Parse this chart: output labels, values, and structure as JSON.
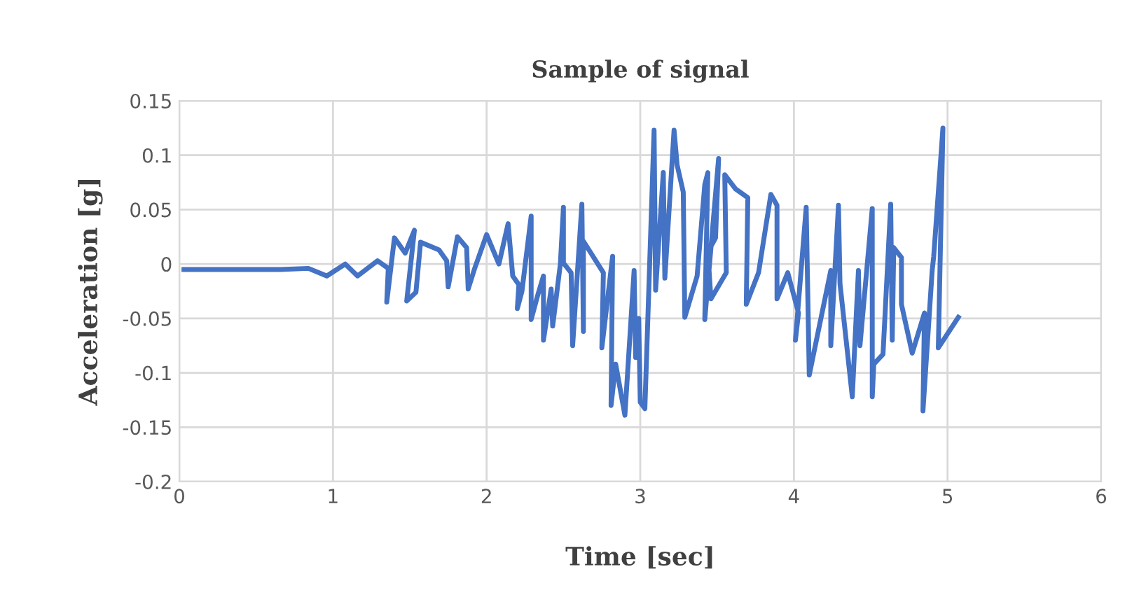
{
  "chart_data": {
    "type": "line",
    "title": "Sample of signal",
    "xlabel": "Time [sec]",
    "ylabel": "Acceleration [g]",
    "xlim": [
      0,
      6
    ],
    "xticks": [
      0,
      1,
      2,
      3,
      4,
      5,
      6
    ],
    "ylim": [
      -0.2,
      0.15
    ],
    "yticks": [
      -0.2,
      -0.15,
      -0.1,
      -0.05,
      0,
      0.05,
      0.1,
      0.15
    ],
    "grid": true,
    "series": [
      {
        "color": "#4472c4",
        "x": [
          0.03,
          0.66,
          0.84,
          0.96,
          1.08,
          1.16,
          1.29,
          1.36,
          1.35,
          1.4,
          1.47,
          1.53,
          1.48,
          1.54,
          1.57,
          1.69,
          1.74,
          1.75,
          1.81,
          1.87,
          1.88,
          1.92,
          2.0,
          2.08,
          2.14,
          2.17,
          2.21,
          2.2,
          2.23,
          2.29,
          2.29,
          2.33,
          2.37,
          2.37,
          2.42,
          2.43,
          2.48,
          2.5,
          2.5,
          2.55,
          2.56,
          2.62,
          2.63,
          2.63,
          2.76,
          2.75,
          2.82,
          2.81,
          2.84,
          2.9,
          2.96,
          2.97,
          2.99,
          3.0,
          3.03,
          3.09,
          3.1,
          3.15,
          3.16,
          3.22,
          3.24,
          3.28,
          3.29,
          3.37,
          3.42,
          3.44,
          3.42,
          3.51,
          3.49,
          3.44,
          3.46,
          3.56,
          3.55,
          3.62,
          3.7,
          3.69,
          3.77,
          3.85,
          3.89,
          3.89,
          3.96,
          4.03,
          4.01,
          4.08,
          4.1,
          4.24,
          4.24,
          4.29,
          4.3,
          4.38,
          4.42,
          4.43,
          4.51,
          4.51,
          4.52,
          4.58,
          4.63,
          4.64,
          4.65,
          4.7,
          4.7,
          4.77,
          4.85,
          4.84,
          4.9,
          4.91,
          4.97,
          4.94,
          5.07
        ],
        "values": [
          -0.005,
          -0.005,
          -0.004,
          -0.011,
          0.0,
          -0.011,
          0.003,
          -0.004,
          -0.035,
          0.024,
          0.01,
          0.031,
          -0.034,
          -0.026,
          0.02,
          0.013,
          0.003,
          -0.021,
          0.025,
          0.015,
          -0.023,
          -0.005,
          0.027,
          0.0,
          0.037,
          -0.011,
          -0.019,
          -0.041,
          -0.025,
          0.044,
          -0.051,
          -0.03,
          -0.011,
          -0.07,
          -0.023,
          -0.057,
          0.0,
          0.052,
          0.001,
          -0.008,
          -0.075,
          0.055,
          -0.062,
          0.021,
          -0.008,
          -0.077,
          0.007,
          -0.13,
          -0.092,
          -0.139,
          -0.006,
          -0.086,
          -0.05,
          -0.127,
          -0.133,
          0.123,
          -0.024,
          0.084,
          -0.013,
          0.123,
          0.091,
          0.066,
          -0.049,
          -0.011,
          0.073,
          0.084,
          -0.051,
          0.097,
          0.024,
          0.011,
          -0.032,
          -0.008,
          0.082,
          0.069,
          0.061,
          -0.037,
          -0.008,
          0.064,
          0.054,
          -0.032,
          -0.008,
          -0.045,
          -0.07,
          0.052,
          -0.102,
          -0.006,
          -0.075,
          0.054,
          -0.018,
          -0.122,
          -0.006,
          -0.075,
          0.051,
          -0.122,
          -0.092,
          -0.083,
          0.055,
          -0.07,
          0.015,
          0.006,
          -0.037,
          -0.082,
          -0.045,
          -0.135,
          -0.006,
          0.007,
          0.125,
          -0.077,
          -0.049
        ]
      }
    ]
  }
}
